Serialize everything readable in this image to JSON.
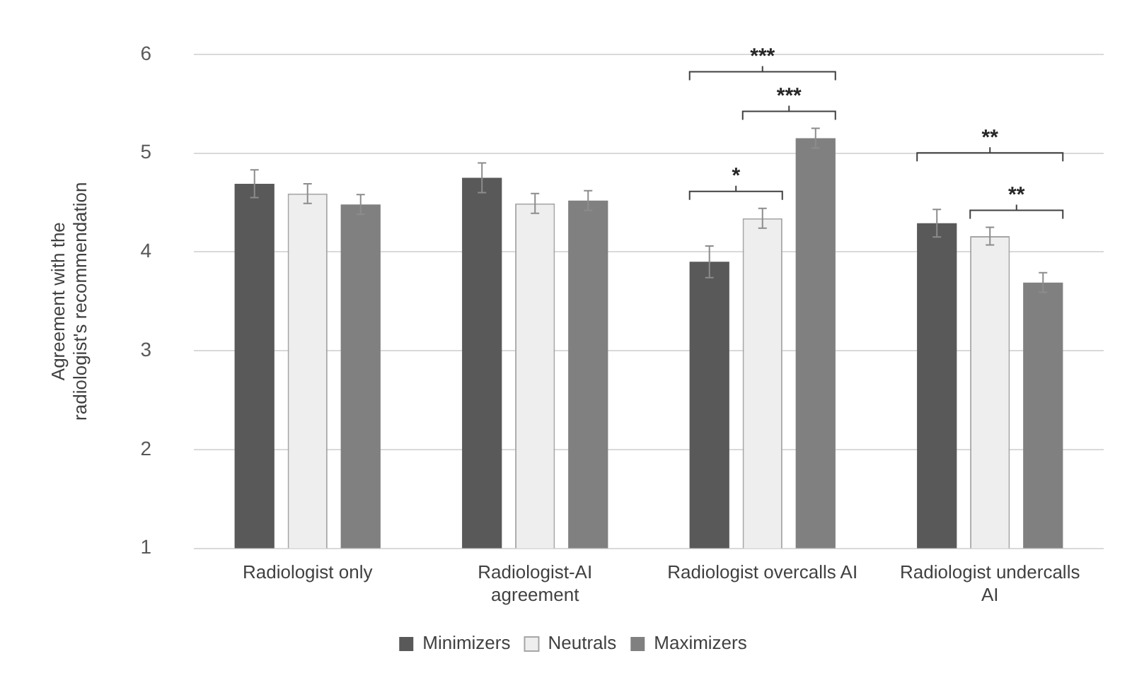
{
  "chart_data": {
    "type": "bar",
    "ylabel": "Agreement with the radiologist's recommendation",
    "categories": [
      "Radiologist only",
      "Radiologist-AI agreement",
      "Radiologist overcalls AI",
      "Radiologist undercalls AI"
    ],
    "series": [
      {
        "name": "Minimizers",
        "color": "#595959",
        "values": [
          4.69,
          4.75,
          3.9,
          4.29
        ],
        "errors": [
          0.14,
          0.15,
          0.16,
          0.14
        ]
      },
      {
        "name": "Neutrals",
        "color": "#eeeeee",
        "values": [
          4.59,
          4.49,
          4.34,
          4.16
        ],
        "errors": [
          0.1,
          0.1,
          0.1,
          0.09
        ]
      },
      {
        "name": "Maximizers",
        "color": "#808080",
        "values": [
          4.48,
          4.52,
          5.15,
          3.69
        ],
        "errors": [
          0.1,
          0.1,
          0.1,
          0.1
        ]
      }
    ],
    "ylim": [
      1,
      6
    ],
    "yticks": [
      1,
      2,
      3,
      4,
      5,
      6
    ],
    "grid": "y",
    "legend": "bottom",
    "annotations": [
      "*",
      "***",
      "***",
      "**",
      "**"
    ]
  }
}
